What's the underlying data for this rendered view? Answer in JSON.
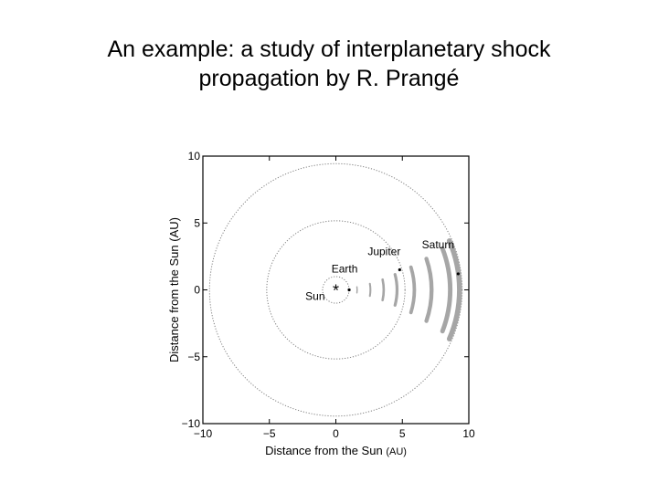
{
  "slide": {
    "title_line1": "An example: a study of interplanetary shock",
    "title_line2": "propagation by R. Prangé"
  },
  "figure": {
    "xlabel": "Distance from the Sun",
    "xlabel_unit": "(AU)",
    "ylabel": "Distance from the Sun (AU)",
    "x_range": [
      -10,
      10
    ],
    "y_range": [
      -10,
      10
    ],
    "ticks": [
      -10,
      -5,
      0,
      5,
      10
    ],
    "tick_labels": [
      "−10",
      "−5",
      "0",
      "5",
      "10"
    ],
    "orbits_au": [
      1,
      5.2,
      9.5
    ],
    "sun_symbol": "*",
    "bodies": [
      {
        "name": "Sun",
        "x": 0,
        "y": 0
      },
      {
        "name": "Earth",
        "x": 1,
        "y": 0
      },
      {
        "name": "Jupiter",
        "x": 4.8,
        "y": 1.5
      },
      {
        "name": "Saturn",
        "x": 9.2,
        "y": 1.2
      }
    ],
    "shock_fronts_au": [
      1.6,
      2.6,
      3.6,
      4.6,
      5.9,
      7.2,
      8.6,
      9.3
    ],
    "colors": {
      "frame": "#000000",
      "orbit": "#808080",
      "shock": "#a6a6a6",
      "text": "#000000"
    }
  }
}
